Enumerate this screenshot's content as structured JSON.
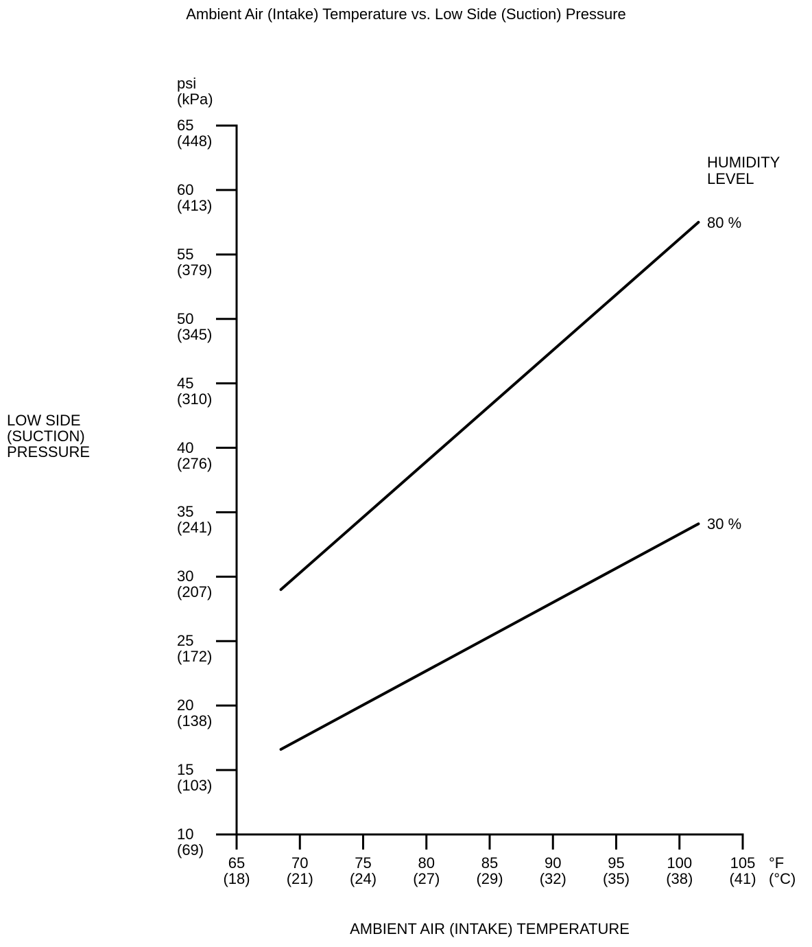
{
  "chart_data": {
    "type": "line",
    "title": "Ambient Air (Intake) Temperature vs. Low Side (Suction) Pressure",
    "xlabel": "AMBIENT AIR (INTAKE) TEMPERATURE",
    "ylabel": "LOW SIDE\n(SUCTION)\nPRESSURE",
    "y_unit_label": "psi\n(kPa)",
    "x_unit_label": "°F\n(°C)",
    "legend_title": "HUMIDITY\nLEVEL",
    "grid": false,
    "background": "#ffffff",
    "axis_color": "#000000",
    "xlim": [
      65,
      105
    ],
    "ylim": [
      10,
      65
    ],
    "x_ticks": [
      {
        "value": 65,
        "f": "65",
        "c": "(18)"
      },
      {
        "value": 70,
        "f": "70",
        "c": "(21)"
      },
      {
        "value": 75,
        "f": "75",
        "c": "(24)"
      },
      {
        "value": 80,
        "f": "80",
        "c": "(27)"
      },
      {
        "value": 85,
        "f": "85",
        "c": "(29)"
      },
      {
        "value": 90,
        "f": "90",
        "c": "(32)"
      },
      {
        "value": 95,
        "f": "95",
        "c": "(35)"
      },
      {
        "value": 100,
        "f": "100",
        "c": "(38)"
      },
      {
        "value": 105,
        "f": "105",
        "c": "(41)"
      }
    ],
    "y_ticks": [
      {
        "value": 65,
        "psi": "65",
        "kpa": "(448)"
      },
      {
        "value": 60,
        "psi": "60",
        "kpa": "(413)"
      },
      {
        "value": 55,
        "psi": "55",
        "kpa": "(379)"
      },
      {
        "value": 50,
        "psi": "50",
        "kpa": "(345)"
      },
      {
        "value": 45,
        "psi": "45",
        "kpa": "(310)"
      },
      {
        "value": 40,
        "psi": "40",
        "kpa": "(276)"
      },
      {
        "value": 35,
        "psi": "35",
        "kpa": "(241)"
      },
      {
        "value": 30,
        "psi": "30",
        "kpa": "(207)"
      },
      {
        "value": 25,
        "psi": "25",
        "kpa": "(172)"
      },
      {
        "value": 20,
        "psi": "20",
        "kpa": "(138)"
      },
      {
        "value": 15,
        "psi": "15",
        "kpa": "(103)"
      },
      {
        "value": 10,
        "psi": "10",
        "kpa": "(69)"
      }
    ],
    "series": [
      {
        "name": "80 %",
        "color": "#000000",
        "points": [
          [
            68.5,
            29.0
          ],
          [
            101.5,
            57.5
          ]
        ]
      },
      {
        "name": "30 %",
        "color": "#000000",
        "points": [
          [
            68.5,
            16.6
          ],
          [
            101.5,
            34.1
          ]
        ]
      }
    ]
  }
}
